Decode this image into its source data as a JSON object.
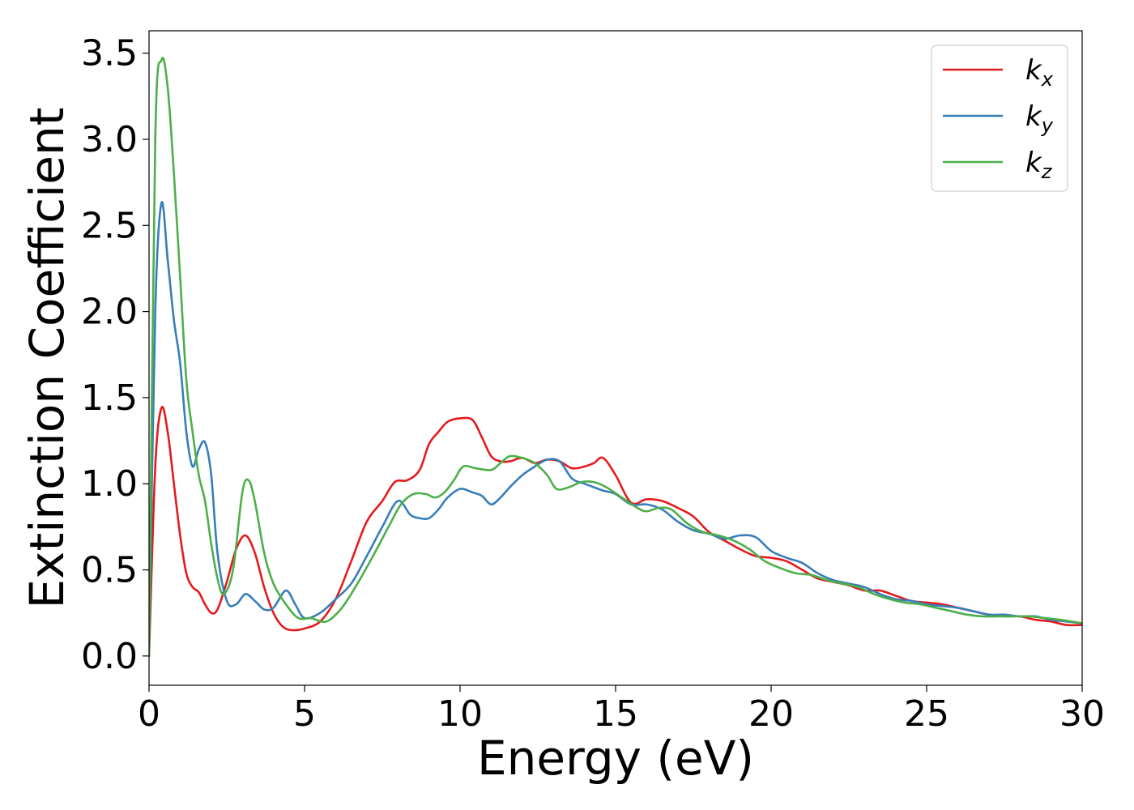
{
  "chart_data": {
    "type": "line",
    "xlabel": "Energy (eV)",
    "ylabel": "Extinction Coefficient",
    "xlim": [
      0,
      30
    ],
    "ylim": [
      -0.17,
      3.63
    ],
    "xticks": [
      0,
      5,
      10,
      15,
      20,
      25,
      30
    ],
    "xtick_labels": [
      "0",
      "5",
      "10",
      "15",
      "20",
      "25",
      "30"
    ],
    "yticks": [
      0.0,
      0.5,
      1.0,
      1.5,
      2.0,
      2.5,
      3.0,
      3.5
    ],
    "ytick_labels": [
      "0.0",
      "0.5",
      "1.0",
      "1.5",
      "2.0",
      "2.5",
      "3.0",
      "3.5"
    ],
    "grid": false,
    "legend_position": "top-right",
    "series": [
      {
        "name": "k_x",
        "label_main": "k",
        "label_sub": "x",
        "color": "#e41a1c",
        "x": [
          0,
          0.2,
          0.4,
          0.6,
          0.8,
          1.0,
          1.2,
          1.4,
          1.6,
          1.8,
          2.0,
          2.2,
          2.5,
          2.8,
          3.1,
          3.4,
          3.7,
          4.0,
          4.3,
          4.6,
          5.0,
          5.5,
          6.0,
          6.5,
          7.0,
          7.5,
          7.9,
          8.3,
          8.7,
          9.0,
          9.3,
          9.6,
          10.0,
          10.4,
          10.7,
          11.0,
          11.3,
          11.6,
          12.0,
          12.4,
          12.8,
          13.2,
          13.6,
          14.0,
          14.3,
          14.6,
          15.0,
          15.5,
          16.0,
          16.5,
          17.0,
          17.5,
          18.0,
          18.5,
          19.0,
          19.5,
          20.0,
          20.5,
          21.0,
          21.5,
          22.0,
          22.5,
          23.0,
          23.5,
          24.0,
          24.5,
          25.0,
          25.5,
          26.0,
          26.5,
          27.0,
          27.5,
          28.0,
          28.5,
          29.0,
          29.5,
          30.0
        ],
        "y": [
          0.0,
          1.1,
          1.44,
          1.3,
          1.0,
          0.7,
          0.48,
          0.4,
          0.37,
          0.3,
          0.25,
          0.27,
          0.43,
          0.62,
          0.7,
          0.6,
          0.4,
          0.25,
          0.17,
          0.15,
          0.16,
          0.2,
          0.33,
          0.55,
          0.78,
          0.9,
          1.01,
          1.02,
          1.08,
          1.23,
          1.3,
          1.36,
          1.38,
          1.37,
          1.27,
          1.16,
          1.13,
          1.13,
          1.15,
          1.12,
          1.14,
          1.13,
          1.09,
          1.1,
          1.12,
          1.15,
          1.05,
          0.89,
          0.91,
          0.9,
          0.86,
          0.81,
          0.72,
          0.67,
          0.62,
          0.58,
          0.57,
          0.55,
          0.5,
          0.45,
          0.43,
          0.41,
          0.38,
          0.38,
          0.35,
          0.32,
          0.31,
          0.3,
          0.28,
          0.26,
          0.24,
          0.23,
          0.23,
          0.21,
          0.2,
          0.18,
          0.18
        ]
      },
      {
        "name": "k_y",
        "label_main": "k",
        "label_sub": "y",
        "color": "#377eb8",
        "x": [
          0,
          0.2,
          0.4,
          0.6,
          0.8,
          1.0,
          1.2,
          1.4,
          1.6,
          1.8,
          2.0,
          2.2,
          2.5,
          2.8,
          3.1,
          3.4,
          3.7,
          4.0,
          4.4,
          4.7,
          5.0,
          5.5,
          6.0,
          6.5,
          7.0,
          7.5,
          8.0,
          8.4,
          8.7,
          9.0,
          9.3,
          9.6,
          10.0,
          10.4,
          10.7,
          11.0,
          11.3,
          11.6,
          12.0,
          12.4,
          12.8,
          13.2,
          13.6,
          14.0,
          14.3,
          14.6,
          15.0,
          15.5,
          16.0,
          16.5,
          17.0,
          17.5,
          18.0,
          18.5,
          19.0,
          19.5,
          20.0,
          20.5,
          21.0,
          21.5,
          22.0,
          22.5,
          23.0,
          23.5,
          24.0,
          24.5,
          25.0,
          25.5,
          26.0,
          26.5,
          27.0,
          27.5,
          28.0,
          28.5,
          29.0,
          29.5,
          30.0
        ],
        "y": [
          0.0,
          2.0,
          2.63,
          2.3,
          1.95,
          1.7,
          1.3,
          1.1,
          1.2,
          1.24,
          1.05,
          0.6,
          0.32,
          0.3,
          0.36,
          0.32,
          0.27,
          0.28,
          0.38,
          0.3,
          0.22,
          0.25,
          0.33,
          0.42,
          0.58,
          0.75,
          0.9,
          0.82,
          0.8,
          0.8,
          0.85,
          0.92,
          0.97,
          0.95,
          0.93,
          0.88,
          0.92,
          0.98,
          1.05,
          1.1,
          1.14,
          1.13,
          1.03,
          1.0,
          0.98,
          0.96,
          0.94,
          0.88,
          0.88,
          0.85,
          0.78,
          0.73,
          0.71,
          0.68,
          0.7,
          0.69,
          0.61,
          0.57,
          0.54,
          0.48,
          0.44,
          0.42,
          0.4,
          0.36,
          0.33,
          0.32,
          0.3,
          0.29,
          0.28,
          0.26,
          0.24,
          0.24,
          0.23,
          0.23,
          0.21,
          0.2,
          0.19
        ]
      },
      {
        "name": "k_z",
        "label_main": "k",
        "label_sub": "z",
        "color": "#4daf4a",
        "x": [
          0,
          0.2,
          0.4,
          0.6,
          0.8,
          1.0,
          1.2,
          1.4,
          1.6,
          1.8,
          2.0,
          2.2,
          2.4,
          2.7,
          3.0,
          3.2,
          3.4,
          3.7,
          4.0,
          4.4,
          4.8,
          5.2,
          5.7,
          6.2,
          6.7,
          7.2,
          7.7,
          8.1,
          8.5,
          8.9,
          9.2,
          9.5,
          9.8,
          10.1,
          10.5,
          11.0,
          11.3,
          11.6,
          12.0,
          12.4,
          12.8,
          13.1,
          13.5,
          13.9,
          14.3,
          14.7,
          15.2,
          15.7,
          16.0,
          16.4,
          16.8,
          17.3,
          17.8,
          18.3,
          18.8,
          19.3,
          19.8,
          20.3,
          20.8,
          21.3,
          21.8,
          22.3,
          22.8,
          23.3,
          23.8,
          24.3,
          24.8,
          25.3,
          25.8,
          26.3,
          26.8,
          27.3,
          27.8,
          28.3,
          28.8,
          29.3,
          30.0
        ],
        "y": [
          0.0,
          3.0,
          3.46,
          3.3,
          2.8,
          2.2,
          1.6,
          1.3,
          1.05,
          0.9,
          0.65,
          0.45,
          0.36,
          0.5,
          0.95,
          1.02,
          0.9,
          0.6,
          0.42,
          0.3,
          0.22,
          0.22,
          0.2,
          0.28,
          0.42,
          0.58,
          0.75,
          0.88,
          0.94,
          0.94,
          0.92,
          0.95,
          1.02,
          1.1,
          1.09,
          1.08,
          1.12,
          1.16,
          1.15,
          1.12,
          1.05,
          0.97,
          0.98,
          1.01,
          1.01,
          0.98,
          0.92,
          0.86,
          0.84,
          0.86,
          0.85,
          0.77,
          0.72,
          0.7,
          0.67,
          0.62,
          0.55,
          0.51,
          0.48,
          0.47,
          0.44,
          0.42,
          0.4,
          0.36,
          0.33,
          0.31,
          0.3,
          0.28,
          0.26,
          0.24,
          0.23,
          0.23,
          0.23,
          0.23,
          0.22,
          0.21,
          0.19
        ]
      }
    ]
  }
}
